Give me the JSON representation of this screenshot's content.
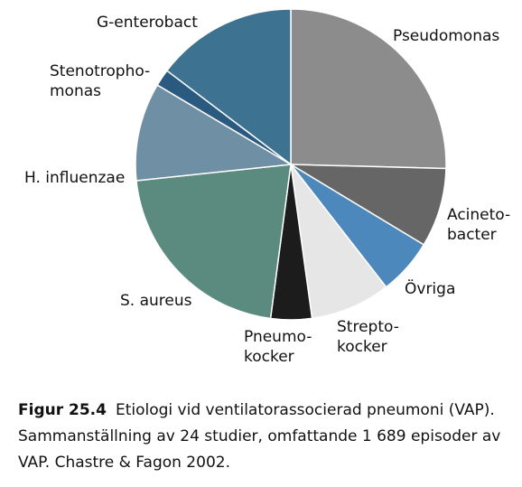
{
  "chart_data": {
    "type": "pie",
    "title": "",
    "slices": [
      {
        "label": "Pseudomonas",
        "lines": [
          "Pseudomonas"
        ],
        "value": 24.4,
        "color": "#8c8c8c",
        "icon": "slice"
      },
      {
        "label": "Acinetobacter",
        "lines": [
          "Acineto-",
          "bacter"
        ],
        "value": 7.9,
        "color": "#666666"
      },
      {
        "label": "Övriga",
        "lines": [
          "Övriga"
        ],
        "value": 5.6,
        "color": "#4d88bd"
      },
      {
        "label": "Streptokocker",
        "lines": [
          "Strepto-",
          "kocker"
        ],
        "value": 8.0,
        "color": "#e6e6e6"
      },
      {
        "label": "Pneumokocker",
        "lines": [
          "Pneumo-",
          "kocker"
        ],
        "value": 4.1,
        "color": "#1c1c1c"
      },
      {
        "label": "S. aureus",
        "lines": [
          "S. aureus"
        ],
        "value": 20.4,
        "color": "#5b8b7e"
      },
      {
        "label": "H. influenzae",
        "lines": [
          "H. influenzae"
        ],
        "value": 9.8,
        "color": "#6f8fa4"
      },
      {
        "label": "Stenotrophomonas",
        "lines": [
          "Stenotropho-",
          "monas"
        ],
        "value": 1.7,
        "color": "#2b5a80"
      },
      {
        "label": "G-enterobact",
        "lines": [
          "G-enterobact"
        ],
        "value": 14.1,
        "color": "#3e7291"
      }
    ]
  },
  "caption": {
    "figure_number": "Figur 25.4",
    "text": "Etiologi vid ventilatorassocierad pneumoni (VAP). Sammanställning av 24 studier, omfattande 1 689 episoder av VAP. Chastre & Fagon 2002."
  }
}
